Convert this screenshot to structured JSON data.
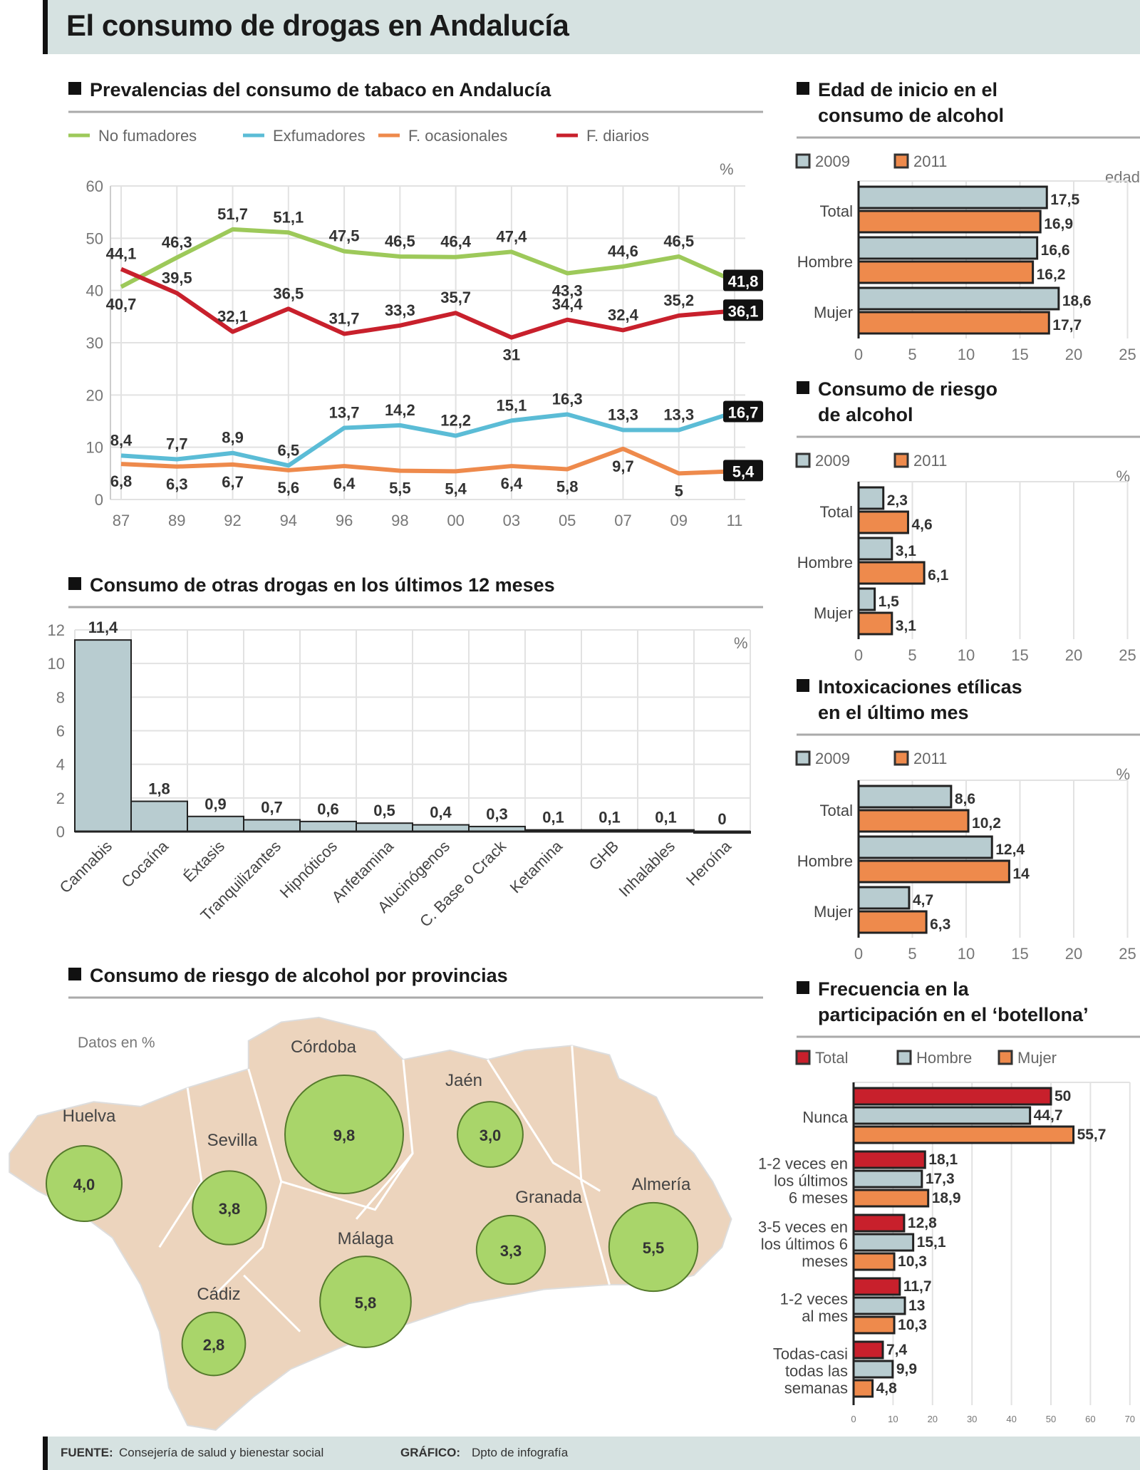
{
  "title": "El consumo de drogas en Andalucía",
  "footer": {
    "source_label": "FUENTE:",
    "source": "Consejería de salud y bienestar social",
    "graphic_label": "GRÁFICO:",
    "graphic": "Dpto de infografía"
  },
  "colors": {
    "green": "#9dc95a",
    "blue": "#5bbcd6",
    "orange": "#ee8a4c",
    "red": "#c8202c",
    "grey_bar": "#b8ccd0",
    "map": "#ecd4bd",
    "circle": "#a9d56a"
  },
  "chart_data": [
    {
      "id": "tabaco",
      "type": "line",
      "title": "Prevalencias del consumo de tabaco en Andalucía",
      "unit": "%",
      "x": [
        "87",
        "89",
        "92",
        "94",
        "96",
        "98",
        "00",
        "03",
        "05",
        "07",
        "09",
        "11"
      ],
      "ylim": [
        0,
        60
      ],
      "yticks": [
        0,
        10,
        20,
        30,
        40,
        50,
        60
      ],
      "grid": true,
      "legend": "top",
      "series": [
        {
          "name": "No fumadores",
          "color": "#9dc95a",
          "values": [
            40.7,
            46.3,
            51.7,
            51.1,
            47.5,
            46.5,
            46.4,
            47.4,
            43.3,
            44.6,
            46.5,
            41.8
          ]
        },
        {
          "name": "Exfumadores",
          "color": "#5bbcd6",
          "values": [
            8.4,
            7.7,
            8.9,
            6.5,
            13.7,
            14.2,
            12.2,
            15.1,
            16.3,
            13.3,
            13.3,
            16.7
          ]
        },
        {
          "name": "F. ocasionales",
          "color": "#ee8a4c",
          "values": [
            6.8,
            6.3,
            6.7,
            5.6,
            6.4,
            5.5,
            5.4,
            6.4,
            5.8,
            9.7,
            5,
            5.4
          ]
        },
        {
          "name": "F. diarios",
          "color": "#c8202c",
          "values": [
            44.1,
            39.5,
            32.1,
            36.5,
            31.7,
            33.3,
            35.7,
            31,
            34.4,
            32.4,
            35.2,
            36.1
          ]
        }
      ]
    },
    {
      "id": "otras",
      "type": "bar",
      "title": "Consumo de otras drogas en los últimos 12 meses",
      "unit": "%",
      "categories": [
        "Cannabis",
        "Cocaína",
        "Éxtasis",
        "Tranquilizantes",
        "Hipnóticos",
        "Anfetamina",
        "Alucinógenos",
        "C. Base o Crack",
        "Ketamina",
        "GHB",
        "Inhalables",
        "Heroína"
      ],
      "values": [
        11.4,
        1.8,
        0.9,
        0.7,
        0.6,
        0.5,
        0.4,
        0.3,
        0.1,
        0.1,
        0.1,
        0
      ],
      "ylim": [
        0,
        12
      ],
      "yticks": [
        0,
        2,
        4,
        6,
        8,
        10,
        12
      ],
      "grid": true
    },
    {
      "id": "provincias",
      "type": "bubble-map",
      "title": "Consumo de riesgo de alcohol por provincias",
      "note": "Datos en %",
      "categories": [
        "Huelva",
        "Sevilla",
        "Córdoba",
        "Jaén",
        "Granada",
        "Almería",
        "Málaga",
        "Cádiz"
      ],
      "values": [
        "4,0",
        "3,8",
        "9,8",
        "3,0",
        "3,3",
        "5,5",
        "5,8",
        "2,8"
      ]
    },
    {
      "id": "edad",
      "type": "bar-horizontal",
      "title": [
        "Edad de inicio en el",
        "consumo de alcohol"
      ],
      "unit": "edad",
      "categories": [
        "Total",
        "Hombre",
        "Mujer"
      ],
      "series": [
        {
          "name": "2009",
          "values": [
            17.5,
            16.6,
            18.6
          ]
        },
        {
          "name": "2011",
          "values": [
            16.9,
            16.2,
            17.7
          ]
        }
      ],
      "xlim": [
        0,
        25
      ],
      "xticks": [
        0,
        5,
        10,
        15,
        20,
        25
      ],
      "grid": true,
      "legend": "top-left"
    },
    {
      "id": "riesgo",
      "type": "bar-horizontal",
      "title": [
        "Consumo de riesgo",
        "de alcohol"
      ],
      "unit": "%",
      "categories": [
        "Total",
        "Hombre",
        "Mujer"
      ],
      "series": [
        {
          "name": "2009",
          "values": [
            2.3,
            3.1,
            1.5
          ]
        },
        {
          "name": "2011",
          "values": [
            4.6,
            6.1,
            3.1
          ]
        }
      ],
      "xlim": [
        0,
        25
      ],
      "xticks": [
        0,
        5,
        10,
        15,
        20,
        25
      ],
      "grid": true,
      "legend": "top-left"
    },
    {
      "id": "intox",
      "type": "bar-horizontal",
      "title": [
        "Intoxicaciones etílicas",
        "en el último mes"
      ],
      "unit": "%",
      "categories": [
        "Total",
        "Hombre",
        "Mujer"
      ],
      "series": [
        {
          "name": "2009",
          "values": [
            8.6,
            12.4,
            4.7
          ]
        },
        {
          "name": "2011",
          "values": [
            10.2,
            14,
            6.3
          ]
        }
      ],
      "xlim": [
        0,
        25
      ],
      "xticks": [
        0,
        5,
        10,
        15,
        20,
        25
      ],
      "grid": true,
      "legend": "top-left"
    },
    {
      "id": "botellona",
      "type": "bar-horizontal",
      "title": [
        "Frecuencia en la",
        "participación en el ‘botellona’"
      ],
      "categories": [
        [
          "Nunca"
        ],
        [
          "1-2 veces en",
          "los últimos",
          "6 meses"
        ],
        [
          "3-5 veces en",
          "los últimos 6",
          "meses"
        ],
        [
          "1-2 veces",
          "al mes"
        ],
        [
          "Todas-casi",
          "todas las",
          "semanas"
        ]
      ],
      "series": [
        {
          "name": "Total",
          "values": [
            50,
            18.1,
            12.8,
            11.7,
            7.4
          ]
        },
        {
          "name": "Hombre",
          "values": [
            44.7,
            17.3,
            15.1,
            13,
            9.9
          ]
        },
        {
          "name": "Mujer",
          "values": [
            55.7,
            18.9,
            10.3,
            10.3,
            4.8
          ]
        }
      ],
      "xlim": [
        0,
        70
      ],
      "xticks": [
        0,
        10,
        20,
        30,
        40,
        50,
        60,
        70
      ],
      "grid": true,
      "legend": "top-left"
    }
  ]
}
